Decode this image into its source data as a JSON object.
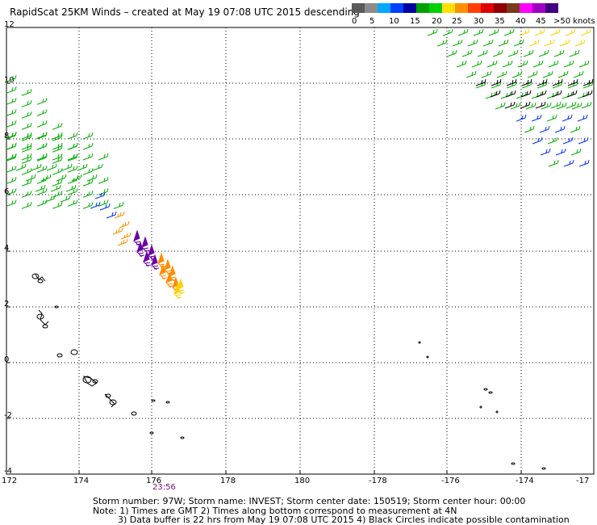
{
  "title": "RapidScat 25KM Winds – created at May 19 07:08 UTC 2015 descending",
  "legend": {
    "colors": [
      "#5a5a5a",
      "#8c8c8c",
      "#00a8ff",
      "#0040ff",
      "#0000a0",
      "#00a000",
      "#00d000",
      "#ffe000",
      "#ff9000",
      "#ff4000",
      "#e00000",
      "#900000",
      "#7a3a1a",
      "#ff00ff",
      "#a000c0",
      "#400080"
    ],
    "labels": [
      "0",
      "5",
      "10",
      "15",
      "20",
      "25",
      "30",
      "35",
      "40",
      "45",
      ">50 knots"
    ]
  },
  "axes": {
    "x_ticks": [
      "172",
      "174",
      "176",
      "178",
      "180",
      "-178",
      "-176",
      "-174",
      "-17"
    ],
    "y_ticks": [
      "12",
      "10",
      "8",
      "6",
      "4",
      "2",
      "0",
      "-2",
      "-4"
    ],
    "y_values": [
      12,
      10,
      8,
      6,
      4,
      2,
      0,
      -2,
      -4
    ]
  },
  "time_label": "23:56",
  "footer": {
    "line1": "Storm number: 97W;   Storm name: INVEST;   Storm center date: 150519;   Storm center hour: 00:00",
    "line2": "Note: 1) Times are GMT  2) Times along bottom correspond to measurement at 4N",
    "line3": "3) Data buffer is 22 hrs from May 19 07:08 UTC 2015   4) Black Circles indicate possible contamination"
  },
  "barb_colors": {
    "green": "#00b000",
    "blue": "#0030ff",
    "black": "#000000",
    "yellow": "#ffd000",
    "orange": "#ff8c00",
    "purple": "#6a00a8"
  }
}
